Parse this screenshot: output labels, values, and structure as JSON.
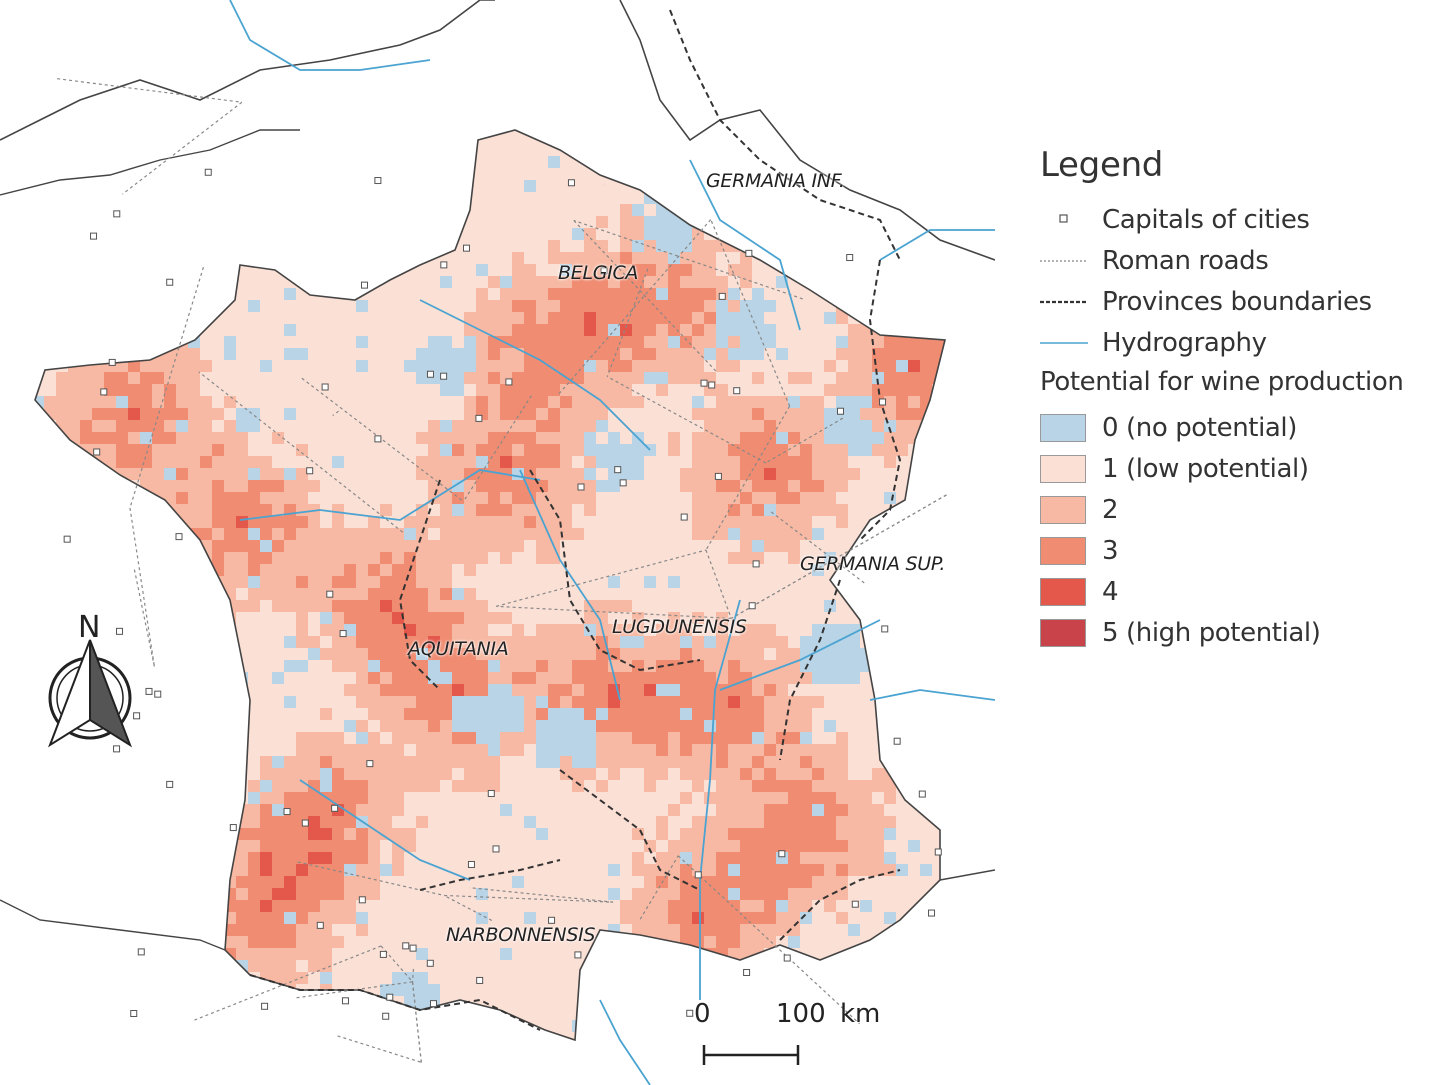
{
  "legend": {
    "title": "Legend",
    "items": [
      {
        "label": "Capitals of cities",
        "symbol": "square"
      },
      {
        "label": "Roman roads",
        "symbol": "dotted-line"
      },
      {
        "label": "Provinces boundaries",
        "symbol": "dashed-line"
      },
      {
        "label": "Hydrography",
        "symbol": "blue-line"
      }
    ],
    "potential_title": "Potential for wine production",
    "classes": [
      {
        "label": "0 (no potential)",
        "color": "#b8d4e6"
      },
      {
        "label": "1 (low potential)",
        "color": "#fbe0d6"
      },
      {
        "label": "2",
        "color": "#f7b9a3"
      },
      {
        "label": "3",
        "color": "#f08c72"
      },
      {
        "label": "4",
        "color": "#e4584c"
      },
      {
        "label": "5 (high potential)",
        "color": "#c9434b"
      }
    ]
  },
  "regions": [
    {
      "name": "GERMANIA INF."
    },
    {
      "name": "BELGICA"
    },
    {
      "name": "GERMANIA SUP."
    },
    {
      "name": "LUGDUNENSIS"
    },
    {
      "name": "AQUITANIA"
    },
    {
      "name": "NARBONNENSIS"
    }
  ],
  "north_arrow": {
    "label": "N"
  },
  "scale_bar": {
    "start": "0",
    "end": "100",
    "unit": "km"
  },
  "colors": {
    "roads": "#888888",
    "boundaries": "#333333",
    "hydrography": "#4aa3d1",
    "coast": "#444444"
  }
}
